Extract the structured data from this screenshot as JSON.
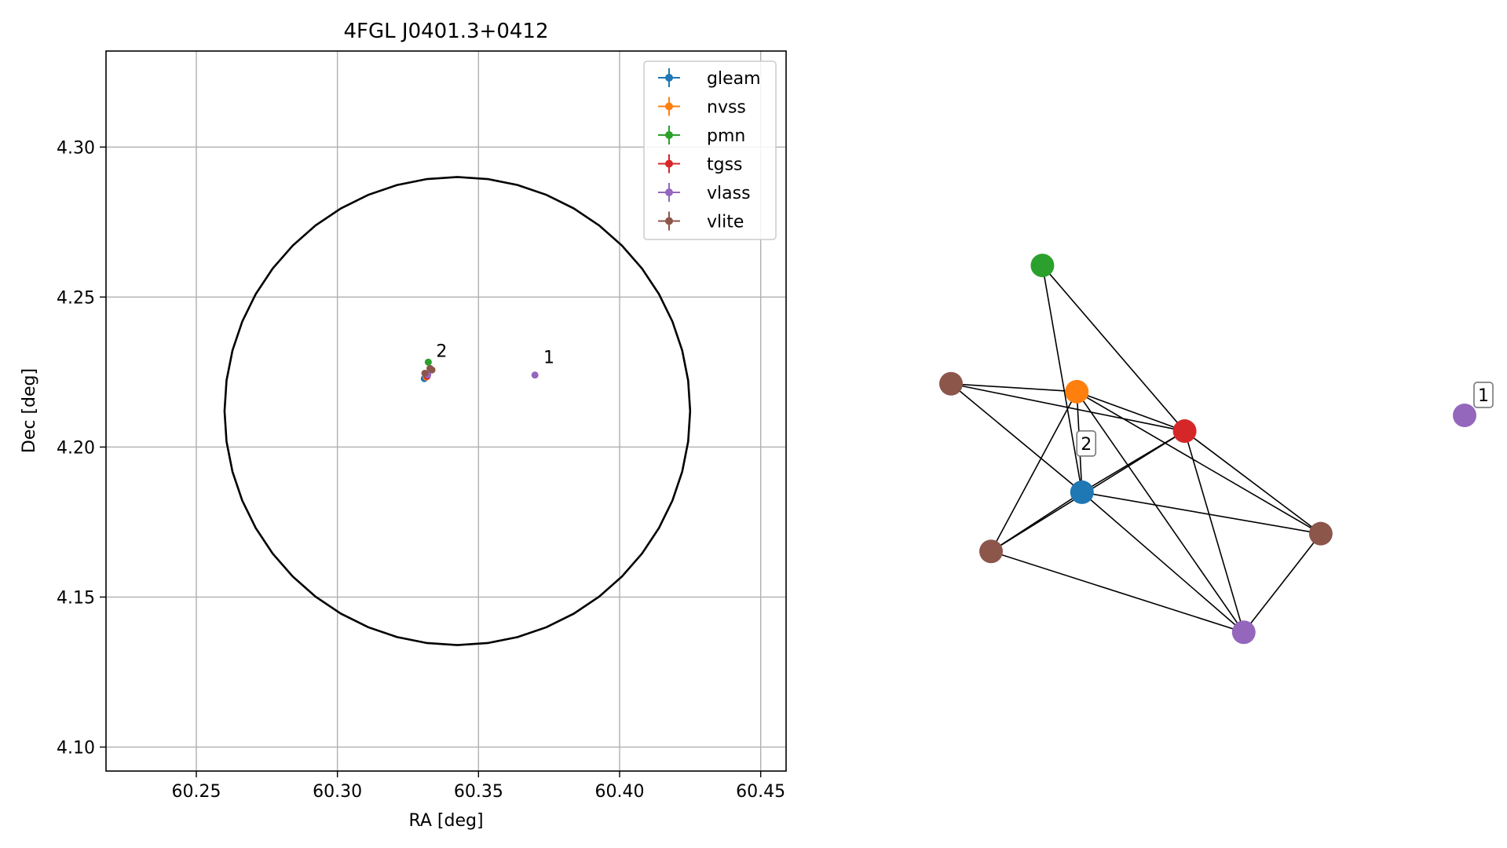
{
  "chart_data": [
    {
      "type": "scatter",
      "title": "4FGL J0401.3+0412",
      "xlabel": "RA [deg]",
      "ylabel": "Dec [deg]",
      "xlim": [
        60.218,
        60.459
      ],
      "ylim": [
        4.092,
        4.332
      ],
      "xticks": [
        60.25,
        60.3,
        60.35,
        60.4,
        60.45
      ],
      "xtick_labels": [
        "60.25",
        "60.30",
        "60.35",
        "60.40",
        "60.45"
      ],
      "yticks": [
        4.1,
        4.15,
        4.2,
        4.25,
        4.3
      ],
      "ytick_labels": [
        "4.10",
        "4.15",
        "4.20",
        "4.25",
        "4.30"
      ],
      "grid": true,
      "legend_position": "top-right",
      "error_ellipse": {
        "center_ra": 60.3425,
        "center_dec": 4.212,
        "semi_ra": 0.0825,
        "semi_dec": 0.078
      },
      "series": [
        {
          "name": "gleam",
          "color": "#1f77b4",
          "points": [
            {
              "ra": 60.3308,
              "dec": 4.2228
            }
          ]
        },
        {
          "name": "nvss",
          "color": "#ff7f0e",
          "points": [
            {
              "ra": 60.3315,
              "dec": 4.2233
            }
          ]
        },
        {
          "name": "pmn",
          "color": "#2ca02c",
          "points": [
            {
              "ra": 60.3322,
              "dec": 4.2283
            }
          ]
        },
        {
          "name": "tgss",
          "color": "#d62728",
          "points": [
            {
              "ra": 60.3318,
              "dec": 4.2236
            }
          ]
        },
        {
          "name": "vlass",
          "color": "#9467bd",
          "points": [
            {
              "ra": 60.37,
              "dec": 4.224
            },
            {
              "ra": 60.332,
              "dec": 4.2241
            }
          ]
        },
        {
          "name": "vlite",
          "color": "#8c564b",
          "points": [
            {
              "ra": 60.3328,
              "dec": 4.2262
            },
            {
              "ra": 60.3335,
              "dec": 4.2257
            },
            {
              "ra": 60.331,
              "dec": 4.2246
            }
          ]
        }
      ],
      "annotations": [
        {
          "text": "2",
          "ra": 60.335,
          "dec": 4.23
        },
        {
          "text": "1",
          "ra": 60.373,
          "dec": 4.228
        }
      ]
    },
    {
      "type": "graph",
      "nodes": [
        {
          "id": "pmn",
          "color": "#2ca02c",
          "x": 0.178,
          "y": 0.82
        },
        {
          "id": "vlite1",
          "color": "#8c564b",
          "x": 0.0,
          "y": 0.52
        },
        {
          "id": "nvss",
          "color": "#ff7f0e",
          "x": 0.245,
          "y": 0.5
        },
        {
          "id": "tgss",
          "color": "#d62728",
          "x": 0.455,
          "y": 0.4
        },
        {
          "id": "gleam",
          "color": "#1f77b4",
          "x": 0.255,
          "y": 0.245
        },
        {
          "id": "vlite2",
          "color": "#8c564b",
          "x": 0.078,
          "y": 0.095
        },
        {
          "id": "vlite3",
          "color": "#8c564b",
          "x": 0.72,
          "y": 0.14
        },
        {
          "id": "vlass1",
          "color": "#9467bd",
          "x": 0.57,
          "y": -0.11
        },
        {
          "id": "vlass2",
          "color": "#9467bd",
          "x": 1.0,
          "y": 0.44
        }
      ],
      "edges": [
        [
          "pmn",
          "gleam"
        ],
        [
          "pmn",
          "tgss"
        ],
        [
          "vlite1",
          "nvss"
        ],
        [
          "vlite1",
          "tgss"
        ],
        [
          "vlite1",
          "gleam"
        ],
        [
          "nvss",
          "tgss"
        ],
        [
          "nvss",
          "gleam"
        ],
        [
          "nvss",
          "vlite2"
        ],
        [
          "nvss",
          "vlass1"
        ],
        [
          "nvss",
          "vlite3"
        ],
        [
          "tgss",
          "gleam"
        ],
        [
          "tgss",
          "vlite2"
        ],
        [
          "tgss",
          "vlass1"
        ],
        [
          "tgss",
          "vlite3"
        ],
        [
          "gleam",
          "vlite2"
        ],
        [
          "gleam",
          "vlite3"
        ],
        [
          "gleam",
          "vlass1"
        ],
        [
          "vlite2",
          "vlass1"
        ],
        [
          "vlass1",
          "vlite3"
        ]
      ],
      "labels": [
        {
          "text": "2",
          "near": "nvss"
        },
        {
          "text": "1",
          "near": "vlass2"
        }
      ]
    }
  ]
}
